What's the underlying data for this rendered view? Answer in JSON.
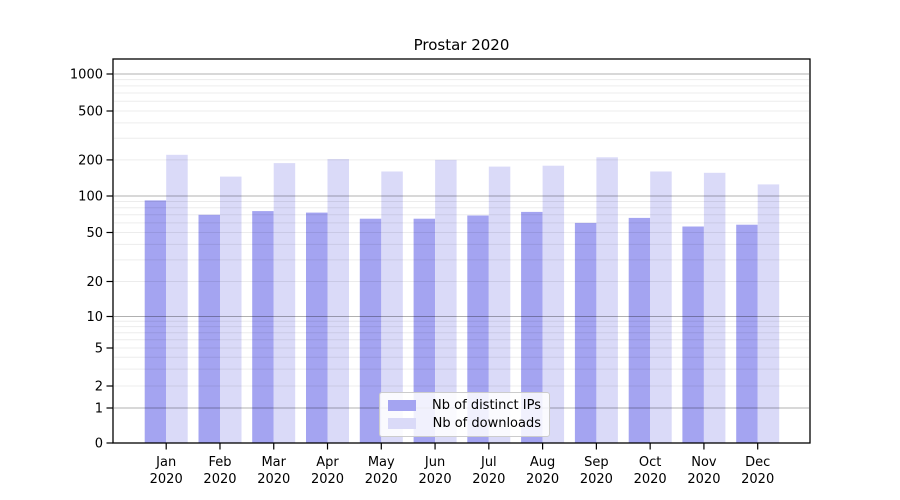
{
  "title": "Prostar 2020",
  "chart_data": {
    "type": "bar",
    "title": "Prostar 2020",
    "months": [
      "Jan",
      "Feb",
      "Mar",
      "Apr",
      "May",
      "Jun",
      "Jul",
      "Aug",
      "Sep",
      "Oct",
      "Nov",
      "Dec"
    ],
    "year": "2020",
    "series": [
      {
        "name": "Nb of distinct IPs",
        "color": "#a4a4f1",
        "values": [
          92,
          70,
          75,
          73,
          65,
          65,
          69,
          74,
          60,
          66,
          56,
          58
        ]
      },
      {
        "name": "Nb of downloads",
        "color": "#dadaf8",
        "values": [
          220,
          145,
          188,
          203,
          160,
          200,
          176,
          179,
          210,
          160,
          156,
          125
        ]
      }
    ],
    "yscale": "symlog",
    "ylim": [
      0,
      1390
    ],
    "y_ticks": [
      {
        "label": "1000",
        "value": 1000
      },
      {
        "label": "500",
        "value": 500
      },
      {
        "label": "200",
        "value": 200
      },
      {
        "label": "100",
        "value": 100
      },
      {
        "label": "50",
        "value": 50
      },
      {
        "label": "20",
        "value": 20
      },
      {
        "label": "10",
        "value": 10
      },
      {
        "label": "5",
        "value": 5
      },
      {
        "label": "2",
        "value": 2
      },
      {
        "label": "1",
        "value": 1
      },
      {
        "label": "0",
        "value": 0
      }
    ],
    "grid": true,
    "legend_position": "bottom-center",
    "colors": {
      "spine": "#000000",
      "grid_major": "#b0b0b0",
      "grid_minor": "#ececec",
      "tick_label": "#000000",
      "background": "#ffffff"
    }
  },
  "legend": {
    "items": [
      {
        "label": "Nb of distinct IPs"
      },
      {
        "label": "Nb of downloads"
      }
    ]
  }
}
